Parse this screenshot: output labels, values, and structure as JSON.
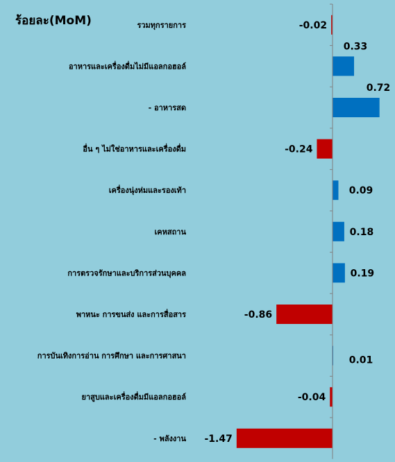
{
  "chart_data": {
    "type": "bar",
    "orientation": "horizontal",
    "ylabel": "ร้อยละ(MoM)",
    "categories": [
      "รวมทุกรายการ",
      "อาหารและเครื่องดื่มไม่มีแอลกอฮอล์",
      "- อาหารสด",
      "อื่น ๆ ไม่ใช่อาหารและเครื่องดื่ม",
      "เครื่องนุ่งห่มและรองเท้า",
      "เคหสถาน",
      "การตรวจรักษาและบริการส่วนบุคคล",
      "พาหนะ การขนส่ง และการสื่อสาร",
      "การบันเทิงการอ่าน การศึกษา และการศาสนา",
      "ยาสูบและเครื่องดื่มมีแอลกอฮอล์",
      "- พลังงาน"
    ],
    "values": [
      -0.02,
      0.33,
      0.72,
      -0.24,
      0.09,
      0.18,
      0.19,
      -0.86,
      0.01,
      -0.04,
      -1.47
    ],
    "value_labels": [
      "-0.02",
      "0.33",
      "0.72",
      "-0.24",
      "0.09",
      "0.18",
      "0.19",
      "-0.86",
      "0.01",
      "-0.04",
      "-1.47"
    ],
    "colors": {
      "positive": "#0070c0",
      "negative": "#c00000",
      "background": "#92cddc",
      "axis": "#808080"
    },
    "grid": false,
    "legend": "none"
  }
}
